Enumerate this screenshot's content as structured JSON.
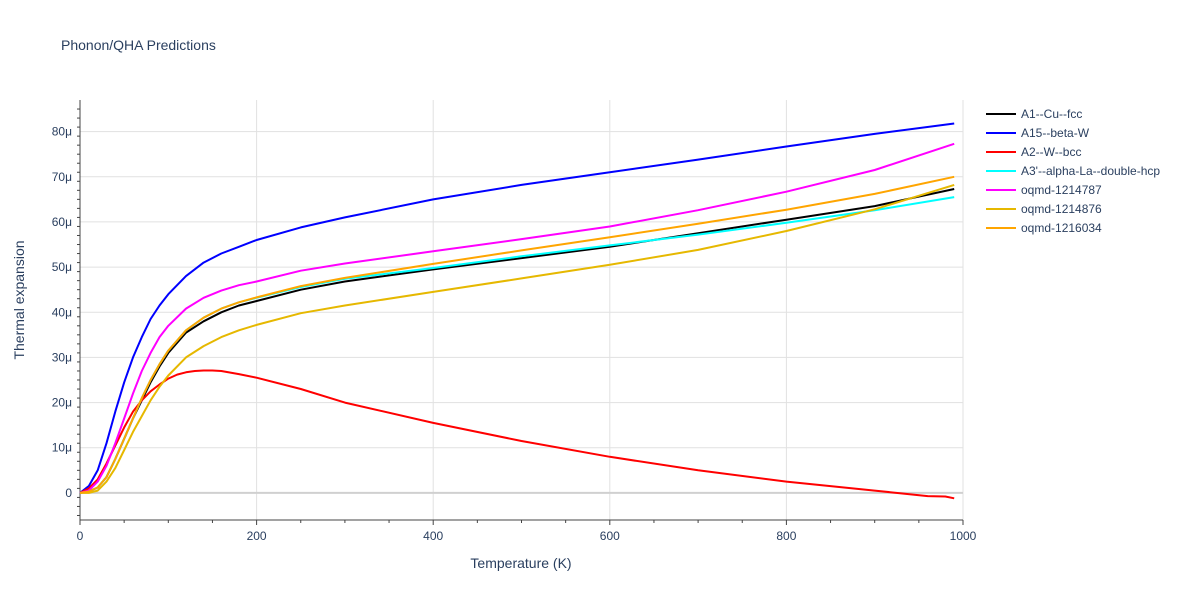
{
  "chart_data": {
    "type": "line",
    "title": "Phonon/QHA Predictions",
    "xlabel": "Temperature (K)",
    "ylabel": "Thermal expansion",
    "xlim": [
      0,
      1000
    ],
    "ylim": [
      -6,
      87
    ],
    "x_ticks": [
      0,
      200,
      400,
      600,
      800,
      1000
    ],
    "y_ticks": [
      0,
      10,
      20,
      30,
      40,
      50,
      60,
      70,
      80
    ],
    "y_tick_labels": [
      "0",
      "10μ",
      "20μ",
      "30μ",
      "40μ",
      "50μ",
      "60μ",
      "70μ",
      "80μ"
    ],
    "grid": true,
    "legend_position": "top-right",
    "series": [
      {
        "name": "A1--Cu--fcc",
        "color": "#000000",
        "x": [
          0,
          10,
          20,
          30,
          40,
          50,
          60,
          70,
          80,
          90,
          100,
          120,
          140,
          160,
          180,
          200,
          250,
          300,
          400,
          500,
          600,
          700,
          800,
          900,
          990
        ],
        "y": [
          0,
          0.3,
          1.2,
          3.5,
          7.5,
          12,
          16.5,
          20.5,
          24.5,
          28,
          31,
          35.5,
          38,
          40,
          41.5,
          42.5,
          45,
          46.8,
          49.5,
          52,
          54.5,
          57.5,
          60.5,
          63.5,
          67.3
        ]
      },
      {
        "name": "A15--beta-W",
        "color": "#0000ff",
        "x": [
          0,
          10,
          20,
          30,
          40,
          50,
          60,
          70,
          80,
          90,
          100,
          120,
          140,
          160,
          180,
          200,
          250,
          300,
          400,
          500,
          600,
          700,
          800,
          900,
          990
        ],
        "y": [
          0,
          1.5,
          5,
          11,
          18,
          24.5,
          30,
          34.5,
          38.5,
          41.5,
          44,
          48,
          51,
          53,
          54.5,
          56,
          58.8,
          61,
          65,
          68.2,
          71,
          73.8,
          76.7,
          79.5,
          81.8
        ]
      },
      {
        "name": "A2--W--bcc",
        "color": "#ff0000",
        "x": [
          0,
          10,
          20,
          30,
          40,
          50,
          60,
          70,
          80,
          90,
          100,
          110,
          120,
          130,
          140,
          150,
          160,
          180,
          200,
          250,
          300,
          400,
          500,
          600,
          700,
          800,
          900,
          960,
          980,
          990
        ],
        "y": [
          0,
          1,
          3,
          6.5,
          10.5,
          14.5,
          18,
          20.5,
          22.5,
          24,
          25.3,
          26.2,
          26.7,
          27,
          27.1,
          27.1,
          27,
          26.3,
          25.5,
          23,
          20,
          15.5,
          11.5,
          8,
          5,
          2.5,
          0.5,
          -0.7,
          -0.8,
          -1.2
        ]
      },
      {
        "name": "A3'--alpha-La--double-hcp",
        "color": "#00ffff",
        "x": [
          0,
          10,
          20,
          30,
          40,
          50,
          60,
          70,
          80,
          90,
          100,
          120,
          140,
          160,
          180,
          200,
          250,
          300,
          400,
          500,
          600,
          700,
          800,
          900,
          990
        ],
        "y": [
          0,
          0.3,
          1.2,
          3.5,
          7.5,
          12,
          16.5,
          21,
          25,
          28.5,
          31.5,
          36,
          38.8,
          40.8,
          42.2,
          43.2,
          45.6,
          47.4,
          49.8,
          52.4,
          54.8,
          57.2,
          59.8,
          62.6,
          65.5
        ]
      },
      {
        "name": "oqmd-1214787",
        "color": "#ff00ff",
        "x": [
          0,
          10,
          20,
          30,
          40,
          50,
          60,
          70,
          80,
          90,
          100,
          120,
          140,
          160,
          180,
          200,
          250,
          300,
          400,
          500,
          600,
          700,
          800,
          900,
          990
        ],
        "y": [
          0,
          0.5,
          2.5,
          6,
          11,
          16.5,
          22,
          27,
          31,
          34.5,
          37,
          40.8,
          43.2,
          44.8,
          46,
          46.8,
          49.2,
          50.8,
          53.5,
          56.2,
          59,
          62.6,
          66.7,
          71.5,
          77.3
        ]
      },
      {
        "name": "oqmd-1214876",
        "color": "#e6b800",
        "x": [
          0,
          10,
          20,
          30,
          40,
          50,
          60,
          70,
          80,
          90,
          100,
          120,
          140,
          160,
          180,
          200,
          250,
          300,
          400,
          500,
          600,
          700,
          800,
          900,
          990
        ],
        "y": [
          0,
          0,
          0.5,
          2.5,
          5.5,
          9.5,
          13.5,
          17,
          20.5,
          23.5,
          26,
          30,
          32.5,
          34.5,
          36,
          37.2,
          39.8,
          41.5,
          44.5,
          47.5,
          50.5,
          53.8,
          58,
          62.8,
          68.2
        ]
      },
      {
        "name": "oqmd-1216034",
        "color": "#ffa500",
        "x": [
          0,
          10,
          20,
          30,
          40,
          50,
          60,
          70,
          80,
          90,
          100,
          120,
          140,
          160,
          180,
          200,
          250,
          300,
          400,
          500,
          600,
          700,
          800,
          900,
          990
        ],
        "y": [
          0,
          0.3,
          1.2,
          3.5,
          7.5,
          12,
          16.5,
          21,
          25,
          28.5,
          31.5,
          36,
          38.8,
          40.8,
          42.2,
          43.3,
          45.8,
          47.6,
          50.7,
          53.7,
          56.6,
          59.6,
          62.7,
          66.2,
          70
        ]
      }
    ]
  }
}
